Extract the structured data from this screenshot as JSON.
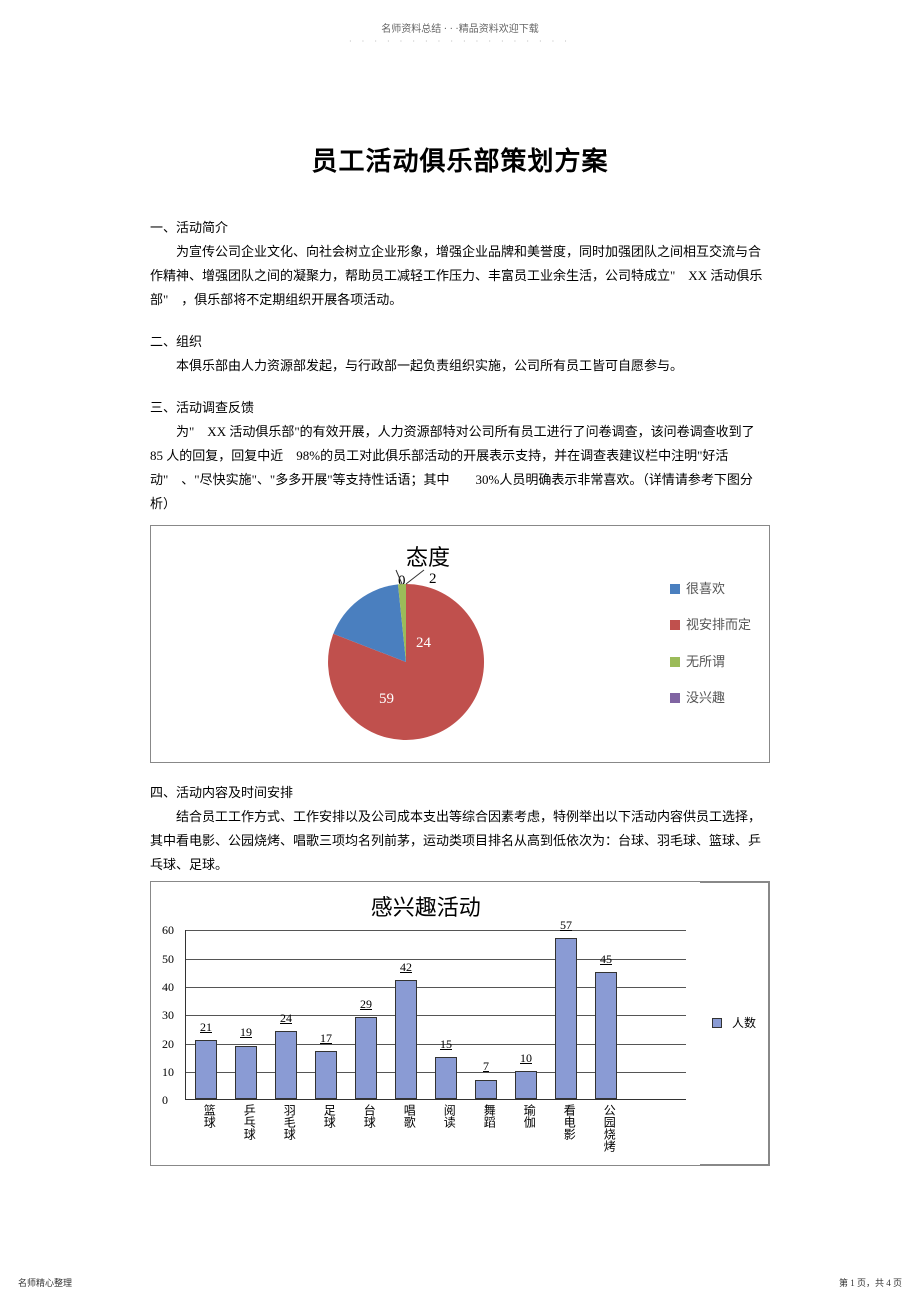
{
  "header": {
    "top_text": "名师资料总结 · · ·精品资料欢迎下载",
    "dots": "· · · · · · · · · · · · · · · · · ·"
  },
  "title": "员工活动俱乐部策划方案",
  "sections": {
    "s1_heading": "一、活动简介",
    "s1_p": "为宣传公司企业文化、向社会树立企业形象，增强企业品牌和美誉度，同时加强团队之间相互交流与合作精神、增强团队之间的凝聚力，帮助员工减轻工作压力、丰富员工业余生活，公司特成立\"　XX 活动俱乐部\"　，俱乐部将不定期组织开展各项活动。",
    "s2_heading": "二、组织",
    "s2_p": "本俱乐部由人力资源部发起，与行政部一起负责组织实施，公司所有员工皆可自愿参与。",
    "s3_heading": "三、活动调查反馈",
    "s3_p": "为\"　XX 活动俱乐部\"的有效开展，人力资源部特对公司所有员工进行了问卷调查，该问卷调查收到了　85 人的回复，回复中近　98%的员工对此俱乐部活动的开展表示支持，并在调查表建议栏中注明\"好活动\"　、\"尽快实施\"、\"多多开展\"等支持性话语；其中　　30%人员明确表示非常喜欢。（详情请参考下图分析）",
    "s4_heading": "四、活动内容及时间安排",
    "s4_p": "结合员工工作方式、工作安排以及公司成本支出等综合因素考虑，特例举出以下活动内容供员工选择，其中看电影、公园烧烤、唱歌三项均名列前茅，运动类项目排名从高到低依次为：台球、羽毛球、篮球、乒乓球、足球。"
  },
  "pie_chart": {
    "title": "态度",
    "top_label_0": "0",
    "top_label_2": "2",
    "slice_labels": {
      "a": "24",
      "b": "59"
    },
    "colors": {
      "like": "#4a7fbf",
      "depends": "#c0504d",
      "neutral": "#9bbb59",
      "no_interest": "#8064a2"
    },
    "legend": [
      {
        "color": "#4a7fbf",
        "label": "很喜欢"
      },
      {
        "color": "#c0504d",
        "label": "视安排而定"
      },
      {
        "color": "#9bbb59",
        "label": "无所谓"
      },
      {
        "color": "#8064a2",
        "label": "没兴趣"
      }
    ]
  },
  "bar_chart": {
    "title": "感兴趣活动",
    "ymax": 60,
    "ytick_step": 10,
    "yticks": [
      "0",
      "10",
      "20",
      "30",
      "40",
      "50",
      "60"
    ],
    "grid_color": "#555555",
    "bar_color": "#8a9bd4",
    "bar_border": "#333333",
    "categories": [
      "篮球",
      "乒乓球",
      "羽毛球",
      "足球",
      "台球",
      "唱歌",
      "阅读",
      "舞蹈",
      "瑜伽",
      "看电影",
      "公园烧烤"
    ],
    "values": [
      21,
      19,
      24,
      17,
      29,
      42,
      15,
      7,
      10,
      57,
      45
    ],
    "legend_label": "人数",
    "legend_color": "#8a9bd4"
  },
  "footer": {
    "left": "名师精心整理",
    "right": "第 1 页，共 4 页"
  }
}
